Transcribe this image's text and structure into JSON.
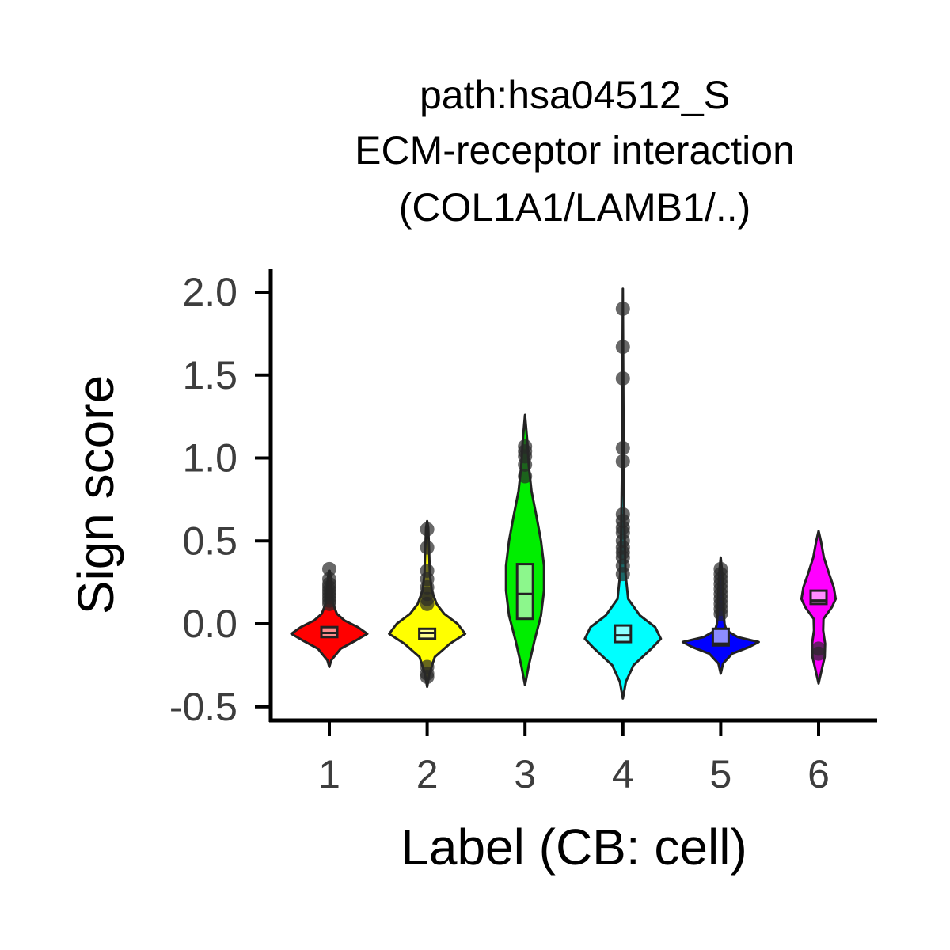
{
  "chart_data": {
    "type": "violin",
    "title_lines": [
      "path:hsa04512_S",
      "ECM-receptor interaction",
      "(COL1A1/LAMB1/..)"
    ],
    "xlabel": "Label (CB: cell)",
    "ylabel": "Sign score",
    "ylim": [
      -0.55,
      2.13
    ],
    "yticks": [
      -0.5,
      0.0,
      0.5,
      1.0,
      1.5,
      2.0
    ],
    "ytick_labels": [
      "-0.5",
      "0.0",
      "0.5",
      "1.0",
      "1.5",
      "2.0"
    ],
    "categories": [
      "1",
      "2",
      "3",
      "4",
      "5",
      "6"
    ],
    "grid": false,
    "legend": "none",
    "groups": [
      {
        "label": "1",
        "color": "#ff0000",
        "box": {
          "q1": -0.08,
          "median": -0.055,
          "q3": -0.02
        },
        "violin": [
          [
            -0.26,
            0.0
          ],
          [
            -0.22,
            0.05
          ],
          [
            -0.15,
            0.3
          ],
          [
            -0.1,
            0.7
          ],
          [
            -0.06,
            1.0
          ],
          [
            -0.02,
            0.75
          ],
          [
            0.02,
            0.4
          ],
          [
            0.06,
            0.2
          ],
          [
            0.12,
            0.1
          ],
          [
            0.2,
            0.06
          ],
          [
            0.27,
            0.04
          ],
          [
            0.32,
            0.01
          ]
        ],
        "outliers": [
          0.12,
          0.14,
          0.16,
          0.18,
          0.2,
          0.22,
          0.24,
          0.27,
          0.33
        ]
      },
      {
        "label": "2",
        "color": "#ffff00",
        "box": {
          "q1": -0.09,
          "median": -0.055,
          "q3": -0.03
        },
        "violin": [
          [
            -0.38,
            0.0
          ],
          [
            -0.3,
            0.06
          ],
          [
            -0.2,
            0.2
          ],
          [
            -0.12,
            0.6
          ],
          [
            -0.06,
            1.0
          ],
          [
            0.0,
            0.8
          ],
          [
            0.06,
            0.45
          ],
          [
            0.12,
            0.25
          ],
          [
            0.2,
            0.12
          ],
          [
            0.3,
            0.07
          ],
          [
            0.45,
            0.05
          ],
          [
            0.58,
            0.03
          ],
          [
            0.62,
            0.0
          ]
        ],
        "outliers": [
          -0.32,
          -0.3,
          -0.26,
          0.12,
          0.15,
          0.18,
          0.22,
          0.27,
          0.32,
          0.46,
          0.57
        ]
      },
      {
        "label": "3",
        "color": "#00ee00",
        "box": {
          "q1": 0.03,
          "median": 0.18,
          "q3": 0.36
        },
        "violin": [
          [
            -0.37,
            0.0
          ],
          [
            -0.25,
            0.1
          ],
          [
            -0.1,
            0.25
          ],
          [
            0.05,
            0.42
          ],
          [
            0.2,
            0.5
          ],
          [
            0.35,
            0.5
          ],
          [
            0.5,
            0.42
          ],
          [
            0.65,
            0.3
          ],
          [
            0.8,
            0.17
          ],
          [
            0.95,
            0.1
          ],
          [
            1.1,
            0.06
          ],
          [
            1.26,
            0.0
          ]
        ],
        "outliers": [
          0.89,
          0.96,
          1.01,
          1.04,
          1.07
        ]
      },
      {
        "label": "4",
        "color": "#00ffff",
        "box": {
          "q1": -0.11,
          "median": -0.07,
          "q3": -0.01
        },
        "violin": [
          [
            -0.45,
            0.0
          ],
          [
            -0.35,
            0.08
          ],
          [
            -0.25,
            0.28
          ],
          [
            -0.15,
            0.75
          ],
          [
            -0.09,
            1.0
          ],
          [
            -0.02,
            0.85
          ],
          [
            0.05,
            0.45
          ],
          [
            0.15,
            0.14
          ],
          [
            0.3,
            0.07
          ],
          [
            0.6,
            0.04
          ],
          [
            1.0,
            0.02
          ],
          [
            1.5,
            0.01
          ],
          [
            2.02,
            0.0
          ]
        ],
        "outliers": [
          0.3,
          0.35,
          0.4,
          0.43,
          0.46,
          0.5,
          0.55,
          0.58,
          0.62,
          0.66,
          0.98,
          1.06,
          1.48,
          1.67,
          1.9
        ]
      },
      {
        "label": "5",
        "color": "#0000ff",
        "box": {
          "q1": -0.13,
          "median": -0.12,
          "q3": -0.03
        },
        "violin": [
          [
            -0.3,
            0.0
          ],
          [
            -0.24,
            0.06
          ],
          [
            -0.18,
            0.3
          ],
          [
            -0.14,
            0.75
          ],
          [
            -0.11,
            1.0
          ],
          [
            -0.08,
            0.45
          ],
          [
            -0.04,
            0.15
          ],
          [
            0.0,
            0.1
          ],
          [
            0.06,
            0.08
          ],
          [
            0.15,
            0.07
          ],
          [
            0.25,
            0.05
          ],
          [
            0.33,
            0.03
          ],
          [
            0.4,
            0.0
          ]
        ],
        "outliers": [
          0.06,
          0.09,
          0.12,
          0.15,
          0.18,
          0.21,
          0.24,
          0.27,
          0.3,
          0.33
        ]
      },
      {
        "label": "6",
        "color": "#ff00ff",
        "box": {
          "q1": 0.12,
          "median": 0.14,
          "q3": 0.2
        },
        "violin": [
          [
            -0.36,
            0.0
          ],
          [
            -0.28,
            0.08
          ],
          [
            -0.2,
            0.16
          ],
          [
            -0.12,
            0.17
          ],
          [
            -0.04,
            0.12
          ],
          [
            0.03,
            0.13
          ],
          [
            0.1,
            0.35
          ],
          [
            0.15,
            0.45
          ],
          [
            0.22,
            0.4
          ],
          [
            0.3,
            0.28
          ],
          [
            0.4,
            0.14
          ],
          [
            0.5,
            0.06
          ],
          [
            0.56,
            0.0
          ]
        ],
        "outliers": [
          -0.18,
          -0.15
        ]
      }
    ]
  }
}
